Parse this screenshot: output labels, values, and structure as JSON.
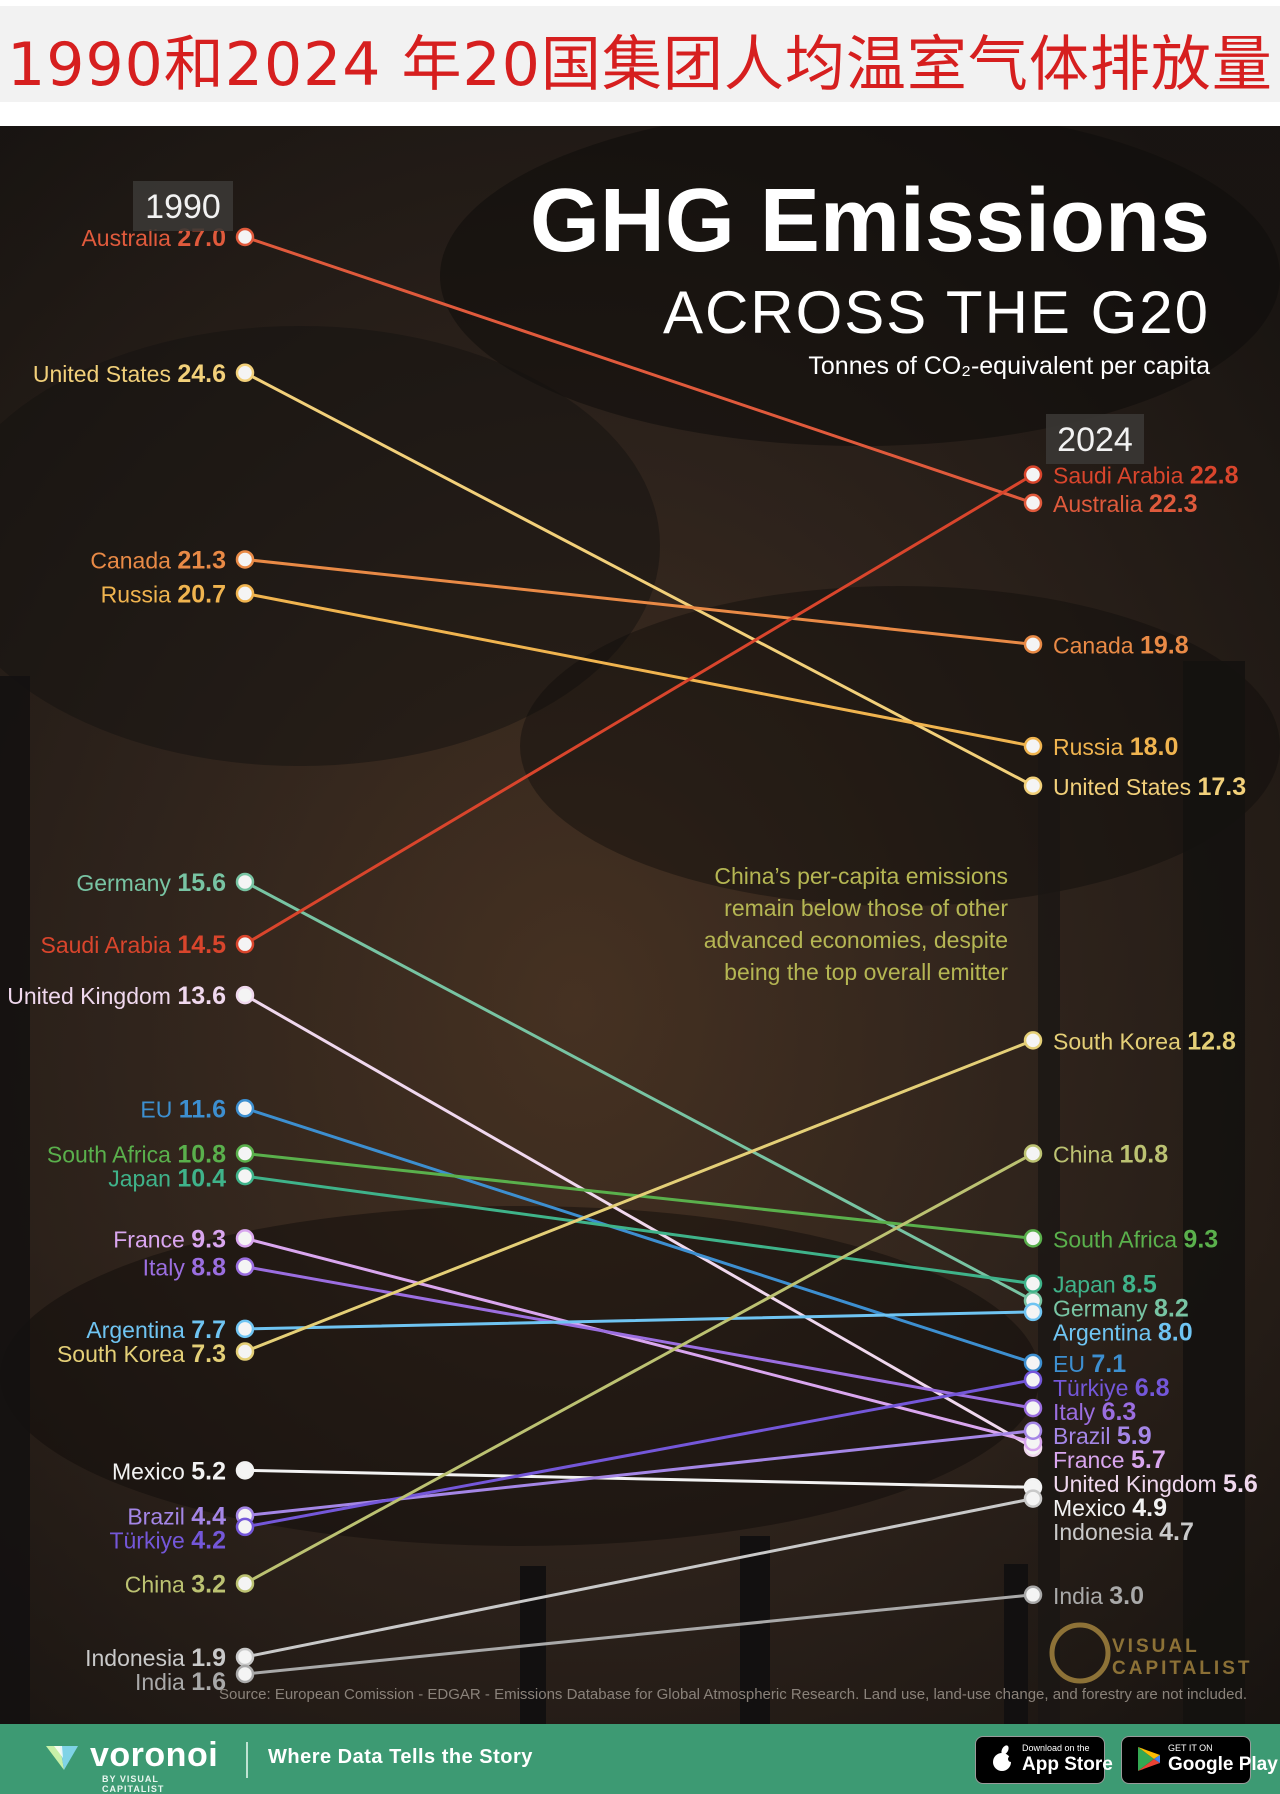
{
  "page_title": "1990和2024 年20国集团人均温室气体排放量",
  "chart_title": "GHG Emissions",
  "chart_subtitle": "ACROSS THE G20",
  "unit_label": "Tonnes of CO₂-equivalent per capita",
  "year_left": "1990",
  "year_right": "2024",
  "annotation": [
    "China’s per-capita emissions",
    "remain below those of other",
    "advanced economies, despite",
    "being the top overall emitter"
  ],
  "source_text": "Source: European Comission - EDGAR - Emissions Database for Global Atmospheric Research. Land use, land-use change, and forestry are not included.",
  "watermark": {
    "line1": "VISUAL",
    "line2": "CAPITALIST"
  },
  "footer": {
    "brand": "voronoi",
    "brand_sub": "BY VISUAL CAPITALIST",
    "tagline": "Where Data Tells the Story",
    "appstore_small": "Download on the",
    "appstore_big": "App Store",
    "googleplay_small": "GET IT ON",
    "googleplay_big": "Google Play"
  },
  "chart_data": {
    "type": "slope",
    "title": "GHG Emissions Across the G20",
    "ylabel": "Tonnes of CO2-equivalent per capita",
    "x": [
      "1990",
      "2024"
    ],
    "ylim": [
      1.6,
      27.0
    ],
    "series": [
      {
        "name": "Australia",
        "v1990": 27.0,
        "v2024": 22.3,
        "color": "#e05a3c"
      },
      {
        "name": "United States",
        "v1990": 24.6,
        "v2024": 17.3,
        "color": "#f2d07a"
      },
      {
        "name": "Canada",
        "v1990": 21.3,
        "v2024": 19.8,
        "color": "#e98a46"
      },
      {
        "name": "Russia",
        "v1990": 20.7,
        "v2024": 18.0,
        "color": "#f0b44f"
      },
      {
        "name": "Germany",
        "v1990": 15.6,
        "v2024": 8.2,
        "color": "#78c4a3"
      },
      {
        "name": "Saudi Arabia",
        "v1990": 14.5,
        "v2024": 22.8,
        "color": "#d9452c"
      },
      {
        "name": "United Kingdom",
        "v1990": 13.6,
        "v2024": 5.6,
        "color": "#f0d8ee"
      },
      {
        "name": "EU",
        "v1990": 11.6,
        "v2024": 7.1,
        "color": "#3d8fd0"
      },
      {
        "name": "South Africa",
        "v1990": 10.8,
        "v2024": 9.3,
        "color": "#5ab04c"
      },
      {
        "name": "Japan",
        "v1990": 10.4,
        "v2024": 8.5,
        "color": "#3fb38a"
      },
      {
        "name": "France",
        "v1990": 9.3,
        "v2024": 5.7,
        "color": "#d9a6ef"
      },
      {
        "name": "Italy",
        "v1990": 8.8,
        "v2024": 6.3,
        "color": "#9b6ee0"
      },
      {
        "name": "Argentina",
        "v1990": 7.7,
        "v2024": 8.0,
        "color": "#6fc4f2"
      },
      {
        "name": "South Korea",
        "v1990": 7.3,
        "v2024": 12.8,
        "color": "#e4cf77"
      },
      {
        "name": "Mexico",
        "v1990": 5.2,
        "v2024": 4.9,
        "color": "#f2f2f2"
      },
      {
        "name": "Brazil",
        "v1990": 4.4,
        "v2024": 5.9,
        "color": "#a486e6"
      },
      {
        "name": "Türkiye",
        "v1990": 4.2,
        "v2024": 6.8,
        "color": "#7457d9"
      },
      {
        "name": "China",
        "v1990": 3.2,
        "v2024": 10.8,
        "color": "#bcc272"
      },
      {
        "name": "Indonesia",
        "v1990": 1.9,
        "v2024": 4.7,
        "color": "#c9c9c9"
      },
      {
        "name": "India",
        "v1990": 1.6,
        "v2024": 3.0,
        "color": "#a9a9a9"
      }
    ]
  }
}
